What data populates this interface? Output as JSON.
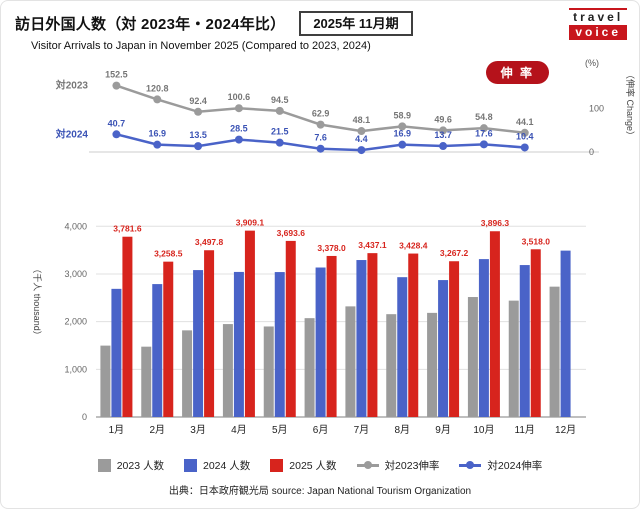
{
  "header": {
    "title": "訪日外国人数（対 2023年・2024年比）",
    "period_badge": "2025年 11月期",
    "subtitle": "Visitor Arrivals to Japan in November 2025 (Compared to 2023, 2024)",
    "logo_travel": "travel",
    "logo_voice": "voice"
  },
  "growth_chart": {
    "badge": "伸 率"
  },
  "chart_data": [
    {
      "type": "line",
      "title": "伸率 Change (%)",
      "categories": [
        "1月",
        "2月",
        "3月",
        "4月",
        "5月",
        "6月",
        "7月",
        "8月",
        "9月",
        "10月",
        "11月"
      ],
      "series": [
        {
          "name": "対2023伸率",
          "short_label": "対2023",
          "color": "#9b9b9b",
          "label_color": "#767676",
          "values": [
            152.5,
            120.8,
            92.4,
            100.6,
            94.5,
            62.9,
            48.1,
            58.9,
            49.6,
            54.8,
            44.1
          ]
        },
        {
          "name": "対2024伸率",
          "short_label": "対2024",
          "color": "#4a63c8",
          "label_color": "#3b53b5",
          "values": [
            40.7,
            16.9,
            13.5,
            28.5,
            21.5,
            7.6,
            4.4,
            16.9,
            13.7,
            17.6,
            10.4
          ]
        }
      ],
      "ylim": [
        0,
        170
      ],
      "yticks": [
        0,
        100
      ],
      "right_axis_unit": "(%)",
      "right_axis_label": "（伸率 Change）",
      "grid": false,
      "legend_position": "bottom"
    },
    {
      "type": "bar",
      "categories": [
        "1月",
        "2月",
        "3月",
        "4月",
        "5月",
        "6月",
        "7月",
        "8月",
        "9月",
        "10月",
        "11月",
        "12月"
      ],
      "series": [
        {
          "name": "2023 人数",
          "color": "#9b9b9b",
          "values": [
            1497.3,
            1475.3,
            1817.5,
            1949.1,
            1898.9,
            2073.3,
            2320.6,
            2156.9,
            2184.3,
            2516.6,
            2440.8,
            2734.0
          ]
        },
        {
          "name": "2024 人数",
          "color": "#4a63c8",
          "values": [
            2688.1,
            2788.0,
            3081.6,
            3042.9,
            3040.1,
            3135.6,
            3292.5,
            2933.0,
            2872.2,
            3312.0,
            3187.0,
            3489.8
          ]
        },
        {
          "name": "2025 人数",
          "color": "#d7241d",
          "show_labels": true,
          "values": [
            3781.6,
            3258.5,
            3497.8,
            3909.1,
            3693.6,
            3378.0,
            3437.1,
            3428.4,
            3267.2,
            3896.3,
            3518.0,
            null
          ]
        }
      ],
      "ylabel": "（千人 thousand）",
      "ylim": [
        0,
        4300
      ],
      "yticks": [
        0,
        1000,
        2000,
        3000,
        4000
      ],
      "grid": true
    }
  ],
  "legend": {
    "items": [
      {
        "marker": "square",
        "color": "#9b9b9b",
        "label": "2023 人数"
      },
      {
        "marker": "square",
        "color": "#4a63c8",
        "label": "2024 人数"
      },
      {
        "marker": "square",
        "color": "#d7241d",
        "label": "2025 人数"
      },
      {
        "marker": "line",
        "color": "#9b9b9b",
        "label": "対2023伸率"
      },
      {
        "marker": "line",
        "color": "#4a63c8",
        "label": "対2024伸率"
      }
    ]
  },
  "footer": "出典：日本政府観光局 source: Japan National Tourism Organization"
}
